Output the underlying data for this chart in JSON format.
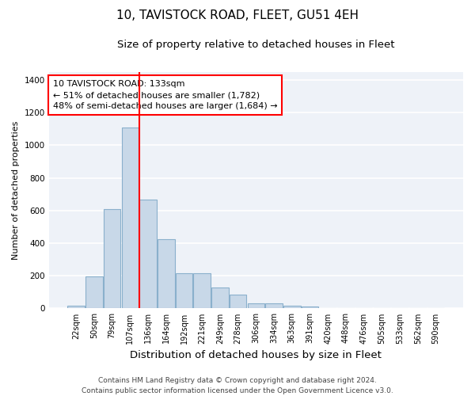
{
  "title": "10, TAVISTOCK ROAD, FLEET, GU51 4EH",
  "subtitle": "Size of property relative to detached houses in Fleet",
  "xlabel": "Distribution of detached houses by size in Fleet",
  "ylabel": "Number of detached properties",
  "bar_color": "#c8d8e8",
  "bar_edgecolor": "#8ab0cc",
  "bar_linewidth": 0.8,
  "background_color": "#eef2f8",
  "grid_color": "#ffffff",
  "categories": [
    "22sqm",
    "50sqm",
    "79sqm",
    "107sqm",
    "136sqm",
    "164sqm",
    "192sqm",
    "221sqm",
    "249sqm",
    "278sqm",
    "306sqm",
    "334sqm",
    "363sqm",
    "391sqm",
    "420sqm",
    "448sqm",
    "476sqm",
    "505sqm",
    "533sqm",
    "562sqm",
    "590sqm"
  ],
  "values": [
    15,
    195,
    610,
    1110,
    665,
    425,
    215,
    215,
    130,
    85,
    30,
    30,
    15,
    10,
    3,
    3,
    2,
    1,
    1,
    1,
    1
  ],
  "ylim": [
    0,
    1450
  ],
  "yticks": [
    0,
    200,
    400,
    600,
    800,
    1000,
    1200,
    1400
  ],
  "property_line_index": 3,
  "annotation_label": "10 TAVISTOCK ROAD: 133sqm",
  "annotation_line1": "← 51% of detached houses are smaller (1,782)",
  "annotation_line2": "48% of semi-detached houses are larger (1,684) →",
  "footer_line1": "Contains HM Land Registry data © Crown copyright and database right 2024.",
  "footer_line2": "Contains public sector information licensed under the Open Government Licence v3.0.",
  "title_fontsize": 11,
  "subtitle_fontsize": 9.5,
  "xlabel_fontsize": 9.5,
  "ylabel_fontsize": 8,
  "tick_fontsize": 7,
  "annotation_fontsize": 8,
  "footer_fontsize": 6.5
}
